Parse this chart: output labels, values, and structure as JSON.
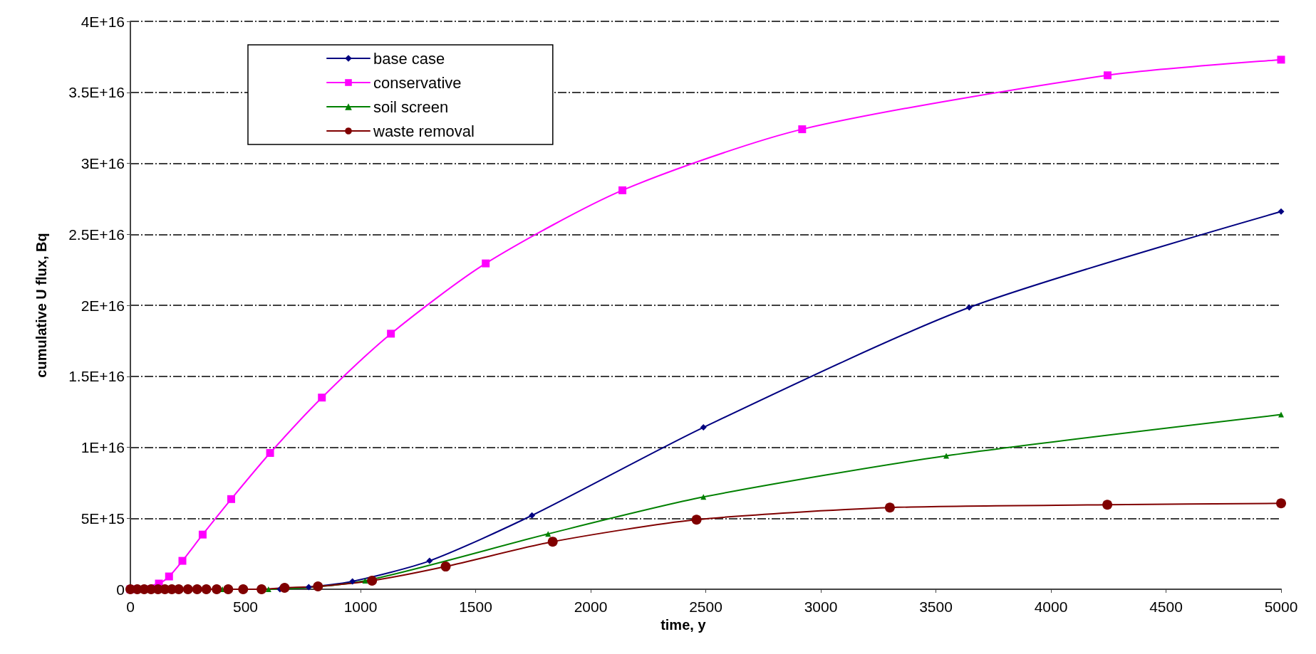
{
  "chart_data": {
    "type": "line",
    "xlabel": "time, y",
    "ylabel": "cumulative U flux, Bq",
    "xlim": [
      0,
      5000
    ],
    "xticks": [
      0,
      500,
      1000,
      1500,
      2000,
      2500,
      3000,
      3500,
      4000,
      4500,
      5000
    ],
    "ylim": [
      0,
      4e+16
    ],
    "yticks": [
      0,
      {
        "value": 5000000000000000.0,
        "label": "5E+15"
      },
      {
        "value": 1e+16,
        "label": "1E+16"
      },
      {
        "value": 1.5e+16,
        "label": "1.5E+16"
      },
      {
        "value": 2e+16,
        "label": "2E+16"
      },
      {
        "value": 2.5e+16,
        "label": "2.5E+16"
      },
      {
        "value": 3e+16,
        "label": "3E+16"
      },
      {
        "value": 3.5e+16,
        "label": "3.5E+16"
      },
      {
        "value": 4e+16,
        "label": "4E+16"
      }
    ],
    "grid": "y",
    "legend": "top left",
    "line_style": "solid",
    "series": [
      {
        "name": "base case",
        "color": "#000080",
        "marker": "diamond",
        "x": [
          650,
          775,
          965,
          1300,
          1745,
          2490,
          3645,
          5000
        ],
        "values": [
          0,
          150000000000000.0,
          550000000000000.0,
          2000000000000000.0,
          5200000000000000.0,
          1.14e+16,
          1.985e+16,
          2.66e+16
        ]
      },
      {
        "name": "conservative",
        "color": "#ff00ff",
        "marker": "square",
        "x": [
          0,
          124,
          168,
          226,
          314,
          438,
          607,
          832,
          1132,
          1544,
          2138,
          2919,
          4246,
          5000
        ],
        "values": [
          0,
          400000000000000.0,
          900000000000000.0,
          2000000000000000.0,
          3850000000000000.0,
          6350000000000000.0,
          9600000000000000.0,
          1.35e+16,
          1.8e+16,
          2.295e+16,
          2.81e+16,
          3.24e+16,
          3.62e+16,
          3.73e+16
        ]
      },
      {
        "name": "soil screen",
        "color": "#008000",
        "marker": "triangle",
        "x": [
          0,
          200,
          400,
          600,
          1020,
          1815,
          2490,
          3545,
          5000
        ],
        "values": [
          0,
          0,
          0,
          0,
          600000000000000.0,
          3900000000000000.0,
          6500000000000000.0,
          9400000000000000.0,
          1.23e+16
        ]
      },
      {
        "name": "waste removal",
        "color": "#800000",
        "marker": "circle",
        "x": [
          0,
          30,
          60,
          90,
          120,
          150,
          180,
          210,
          250,
          290,
          330,
          375,
          425,
          490,
          570,
          670,
          815,
          1050,
          1370,
          1835,
          2460,
          3300,
          4245,
          5000
        ],
        "values": [
          0,
          0,
          0,
          0,
          0,
          0,
          0,
          0,
          0,
          0,
          0,
          0,
          0,
          0,
          0,
          100000000000000.0,
          200000000000000.0,
          600000000000000.0,
          1600000000000000.0,
          3350000000000000.0,
          4900000000000000.0,
          5750000000000000.0,
          5950000000000000.0,
          6050000000000000.0
        ]
      }
    ]
  }
}
